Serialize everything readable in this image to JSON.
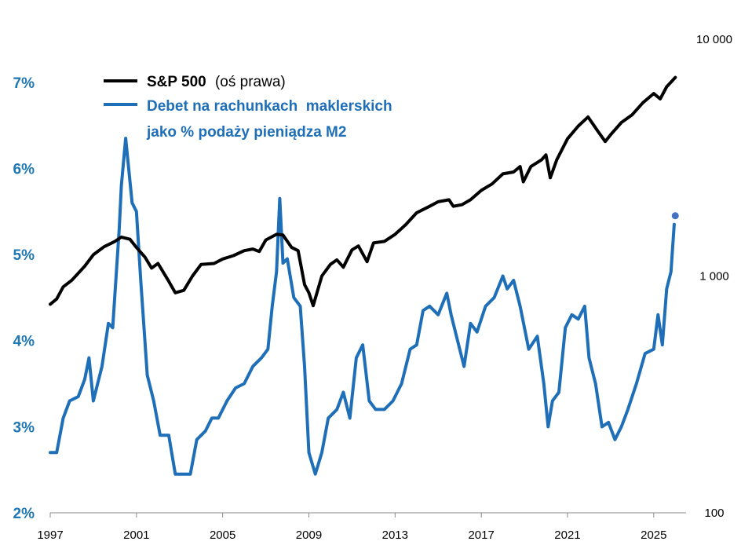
{
  "chart_data": {
    "type": "line",
    "title": "",
    "colors": {
      "sp500": "#000000",
      "margin": "#1f6fb8",
      "axis_left": "#1f77b4"
    },
    "legend": {
      "sp500_name": "S&P 500",
      "sp500_note": "(oś prawa)",
      "margin_line1": "Debet na rachunkach  maklerskich",
      "margin_line2": "jako % podaży pieniądza M2",
      "placement": "top-left"
    },
    "x_ticks": [
      "1997",
      "2001",
      "2005",
      "2009",
      "2013",
      "2017",
      "2021",
      "2025"
    ],
    "xlim": [
      1997,
      2026.5
    ],
    "left_axis": {
      "ticks": [
        "2%",
        "3%",
        "4%",
        "5%",
        "6%",
        "7%"
      ],
      "values": [
        2,
        3,
        4,
        5,
        6,
        7
      ],
      "ylim": [
        2,
        7.5
      ]
    },
    "right_axis": {
      "ticks": [
        "100",
        "1 000",
        "10 000"
      ],
      "values": [
        100,
        1000,
        10000
      ],
      "scale": "log",
      "ylim": [
        100,
        10000
      ]
    },
    "series": [
      {
        "name": "S&P 500",
        "axis": "right",
        "x": [
          1997.0,
          1997.3,
          1997.6,
          1998.0,
          1998.6,
          1999.0,
          1999.5,
          2000.0,
          2000.3,
          2000.7,
          2001.0,
          2001.4,
          2001.7,
          2002.0,
          2002.5,
          2002.8,
          2003.2,
          2003.6,
          2004.0,
          2004.6,
          2005.0,
          2005.5,
          2006.0,
          2006.4,
          2006.7,
          2007.0,
          2007.5,
          2007.8,
          2008.2,
          2008.5,
          2008.8,
          2009.0,
          2009.2,
          2009.6,
          2010.0,
          2010.3,
          2010.6,
          2011.0,
          2011.3,
          2011.7,
          2012.0,
          2012.5,
          2013.0,
          2013.5,
          2014.0,
          2014.6,
          2015.0,
          2015.5,
          2015.7,
          2016.1,
          2016.5,
          2017.0,
          2017.5,
          2018.0,
          2018.5,
          2018.8,
          2018.95,
          2019.3,
          2019.8,
          2020.0,
          2020.2,
          2020.5,
          2021.0,
          2021.5,
          2021.95,
          2022.4,
          2022.75,
          2023.0,
          2023.5,
          2024.0,
          2024.5,
          2025.0,
          2025.3,
          2025.6,
          2026.0
        ],
        "values": [
          760,
          800,
          900,
          960,
          1100,
          1230,
          1330,
          1400,
          1460,
          1430,
          1320,
          1200,
          1080,
          1130,
          950,
          850,
          870,
          1000,
          1120,
          1130,
          1180,
          1220,
          1280,
          1300,
          1270,
          1420,
          1500,
          1490,
          1320,
          1280,
          920,
          850,
          750,
          1000,
          1120,
          1170,
          1090,
          1290,
          1340,
          1150,
          1380,
          1400,
          1500,
          1650,
          1850,
          1970,
          2060,
          2100,
          1970,
          2000,
          2100,
          2300,
          2450,
          2700,
          2750,
          2900,
          2500,
          2900,
          3100,
          3250,
          2600,
          3100,
          3800,
          4300,
          4700,
          4100,
          3700,
          3950,
          4450,
          4800,
          5400,
          5900,
          5600,
          6300,
          6900
        ]
      },
      {
        "name": "Debet na rachunkach maklerskich jako % podaży pieniądza M2",
        "axis": "left",
        "x": [
          1997.0,
          1997.3,
          1997.6,
          1997.9,
          1998.3,
          1998.6,
          1998.8,
          1999.0,
          1999.4,
          1999.7,
          1999.9,
          2000.2,
          2000.3,
          2000.5,
          2000.8,
          2001.0,
          2001.2,
          2001.5,
          2001.8,
          2002.1,
          2002.5,
          2002.8,
          2003.2,
          2003.5,
          2003.8,
          2004.2,
          2004.5,
          2004.8,
          2005.2,
          2005.6,
          2006.0,
          2006.4,
          2006.8,
          2007.1,
          2007.3,
          2007.5,
          2007.65,
          2007.8,
          2008.0,
          2008.3,
          2008.6,
          2008.8,
          2009.0,
          2009.3,
          2009.6,
          2009.9,
          2010.3,
          2010.6,
          2010.9,
          2011.2,
          2011.5,
          2011.8,
          2012.1,
          2012.5,
          2012.9,
          2013.3,
          2013.7,
          2014.0,
          2014.3,
          2014.6,
          2015.0,
          2015.4,
          2015.6,
          2015.9,
          2016.2,
          2016.5,
          2016.8,
          2017.2,
          2017.6,
          2018.0,
          2018.2,
          2018.5,
          2018.8,
          2019.2,
          2019.6,
          2019.9,
          2020.1,
          2020.3,
          2020.6,
          2020.9,
          2021.2,
          2021.5,
          2021.8,
          2022.0,
          2022.3,
          2022.6,
          2022.9,
          2023.2,
          2023.5,
          2023.8,
          2024.2,
          2024.6,
          2025.0,
          2025.2,
          2025.4,
          2025.6,
          2025.8,
          2025.95
        ],
        "values": [
          2.7,
          2.7,
          3.1,
          3.3,
          3.35,
          3.55,
          3.8,
          3.3,
          3.7,
          4.2,
          4.15,
          5.3,
          5.8,
          6.35,
          5.6,
          5.5,
          4.7,
          3.6,
          3.3,
          2.9,
          2.9,
          2.45,
          2.45,
          2.45,
          2.85,
          2.95,
          3.1,
          3.1,
          3.3,
          3.45,
          3.5,
          3.7,
          3.8,
          3.9,
          4.4,
          4.8,
          5.65,
          4.9,
          4.95,
          4.5,
          4.4,
          3.7,
          2.7,
          2.45,
          2.7,
          3.1,
          3.2,
          3.4,
          3.1,
          3.8,
          3.95,
          3.3,
          3.2,
          3.2,
          3.3,
          3.5,
          3.9,
          3.95,
          4.35,
          4.4,
          4.3,
          4.55,
          4.3,
          4.0,
          3.7,
          4.2,
          4.1,
          4.4,
          4.5,
          4.75,
          4.6,
          4.7,
          4.4,
          3.9,
          4.05,
          3.5,
          3.0,
          3.3,
          3.4,
          4.15,
          4.3,
          4.25,
          4.4,
          3.8,
          3.5,
          3.0,
          3.05,
          2.85,
          3.0,
          3.2,
          3.5,
          3.85,
          3.9,
          4.3,
          3.95,
          4.6,
          4.8,
          5.35
        ]
      }
    ],
    "annotations": [
      {
        "type": "point",
        "series": "margin",
        "x": 2026.0,
        "value": 5.45,
        "color": "#4472c4"
      }
    ]
  }
}
